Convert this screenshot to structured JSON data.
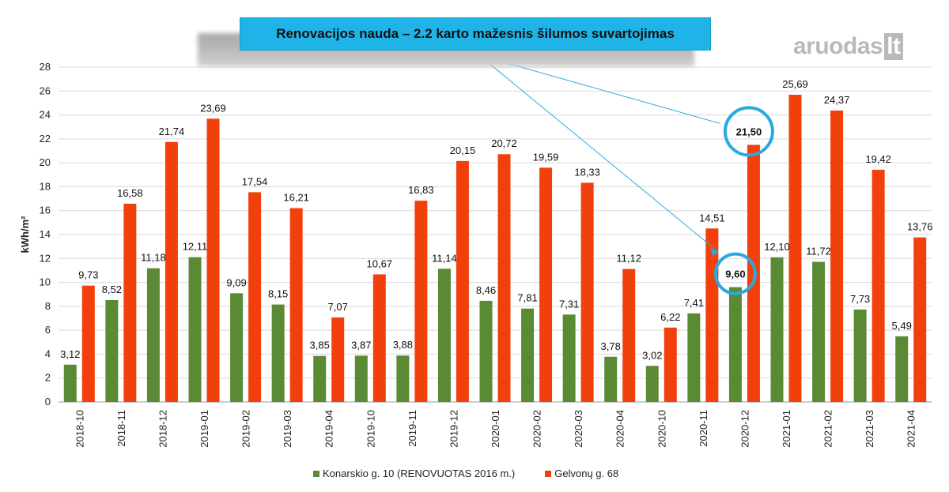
{
  "chart_data": {
    "type": "bar",
    "title": "Renovacijos nauda – 2.2 karto mažesnis šilumos suvartojimas",
    "xlabel": "",
    "ylabel": "kWh/m²",
    "ylim": [
      0,
      28
    ],
    "yticks": [
      "0",
      "2",
      "4",
      "6",
      "8",
      "10",
      "12",
      "14",
      "16",
      "18",
      "20",
      "22",
      "24",
      "26",
      "28"
    ],
    "grid": true,
    "legend_position": "bottom",
    "categories": [
      "2018-10",
      "2018-11",
      "2018-12",
      "2019-01",
      "2019-02",
      "2019-03",
      "2019-04",
      "2019-10",
      "2019-11",
      "2019-12",
      "2020-01",
      "2020-02",
      "2020-03",
      "2020-04",
      "2020-10",
      "2020-11",
      "2020-12",
      "2021-01",
      "2021-02",
      "2021-03",
      "2021-04"
    ],
    "series": [
      {
        "name": "Konarskio g. 10 (RENOVUOTAS 2016 m.)",
        "color": "#5a8a34",
        "values": [
          3.12,
          8.52,
          11.18,
          12.11,
          9.09,
          8.15,
          3.85,
          3.87,
          3.88,
          11.14,
          8.46,
          7.81,
          7.31,
          3.78,
          3.02,
          7.41,
          9.6,
          12.1,
          11.72,
          7.73,
          5.49
        ],
        "labels": [
          "3,12",
          "8,52",
          "11,18",
          "12,11",
          "9,09",
          "8,15",
          "3,85",
          "3,87",
          "3,88",
          "11,14",
          "8,46",
          "7,81",
          "7,31",
          "3,78",
          "3,02",
          "7,41",
          "9,60",
          "12,10",
          "11,72",
          "7,73",
          "5,49"
        ]
      },
      {
        "name": "Gelvonų g. 68",
        "color": "#f2400d",
        "values": [
          9.73,
          16.58,
          21.74,
          23.69,
          17.54,
          16.21,
          7.07,
          10.67,
          16.83,
          20.15,
          20.72,
          19.59,
          18.33,
          11.12,
          6.22,
          14.51,
          21.5,
          25.69,
          24.37,
          19.42,
          13.76
        ],
        "labels": [
          "9,73",
          "16,58",
          "21,74",
          "23,69",
          "17,54",
          "16,21",
          "7,07",
          "10,67",
          "16,83",
          "20,15",
          "20,72",
          "19,59",
          "18,33",
          "11,12",
          "6,22",
          "14,51",
          "21,50",
          "25,69",
          "24,37",
          "19,42",
          "13,76"
        ]
      }
    ],
    "highlight": {
      "category": "2020-12",
      "circle_color": "#29a9e0"
    }
  },
  "logo": {
    "main": "aruodas",
    "suffix": "lt",
    "color": "#b9b9b9"
  }
}
